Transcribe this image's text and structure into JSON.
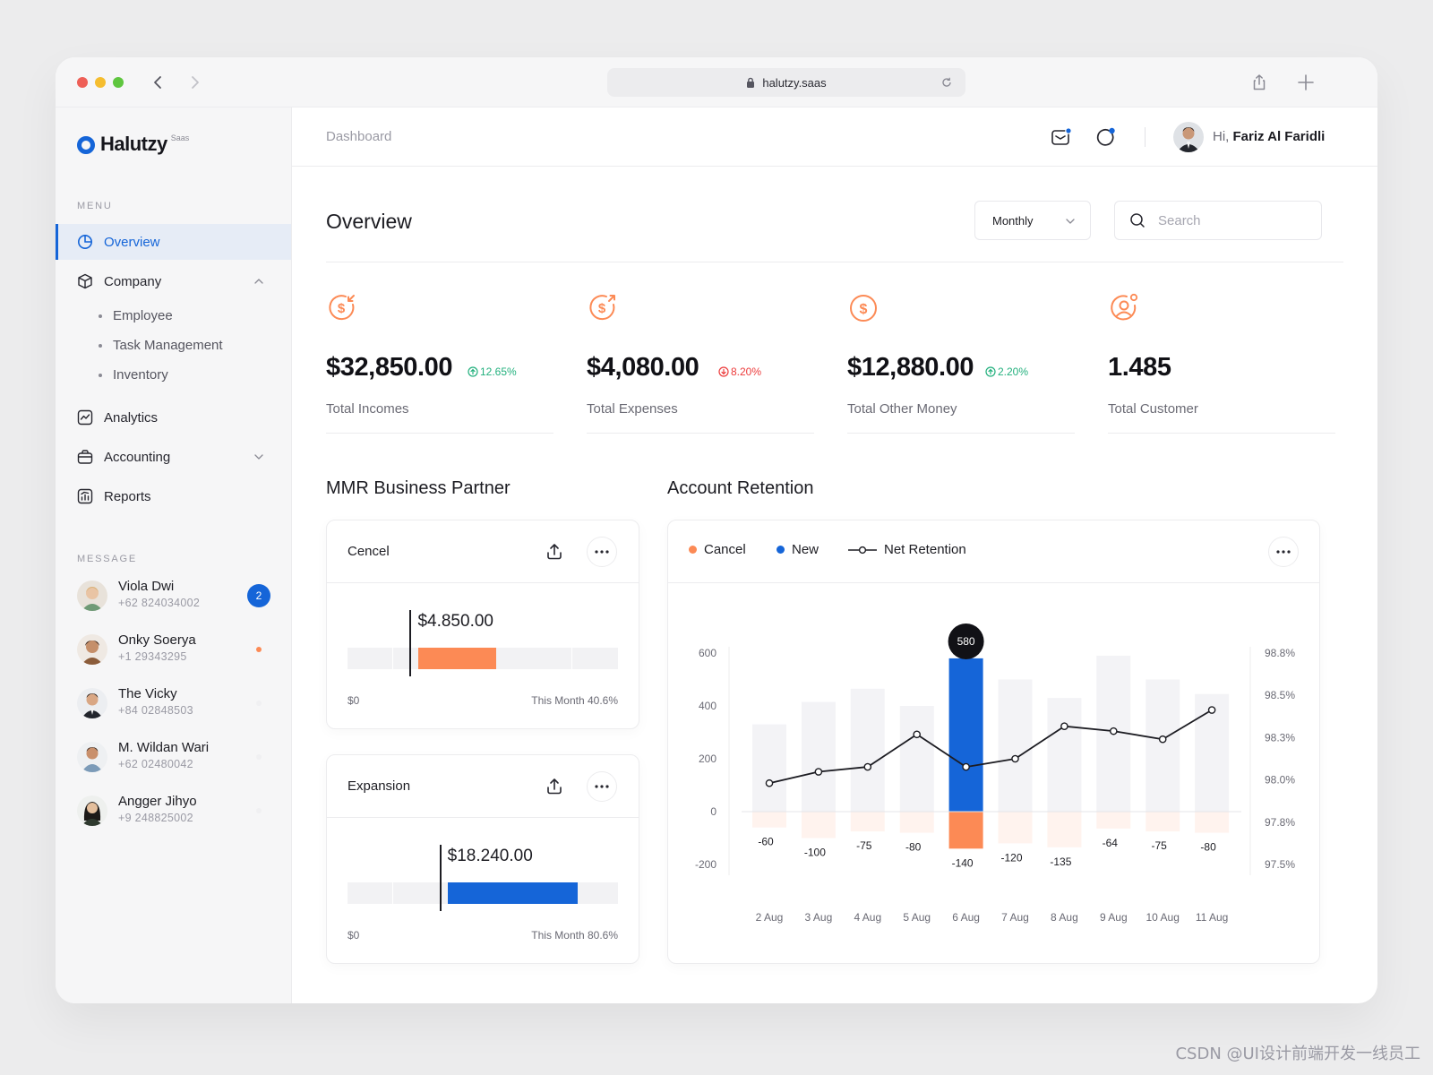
{
  "browser": {
    "url": "halutzy.saas"
  },
  "brand": {
    "name": "Halutzy",
    "tag": "Saas"
  },
  "sidebar": {
    "menu_label": "MENU",
    "message_label": "MESSAGE",
    "items": [
      {
        "label": "Overview",
        "icon": "pie-chart-icon",
        "active": true
      },
      {
        "label": "Company",
        "icon": "cube-icon",
        "expanded": true
      },
      {
        "label": "Analytics",
        "icon": "analytics-icon"
      },
      {
        "label": "Accounting",
        "icon": "briefcase-icon",
        "expanded": false
      },
      {
        "label": "Reports",
        "icon": "report-icon"
      }
    ],
    "company_sub": [
      "Employee",
      "Task Management",
      "Inventory"
    ],
    "messages": [
      {
        "name": "Viola Dwi",
        "phone": "+62 824034002",
        "badge": "2"
      },
      {
        "name": "Onky Soerya",
        "phone": "+1 29343295",
        "status": "unread"
      },
      {
        "name": "The Vicky",
        "phone": "+84 02848503",
        "status": "read"
      },
      {
        "name": "M. Wildan Wari",
        "phone": "+62 02480042",
        "status": "read"
      },
      {
        "name": "Angger Jihyo",
        "phone": "+9 248825002",
        "status": "read"
      }
    ]
  },
  "header": {
    "breadcrumb": "Dashboard",
    "greeting_prefix": "Hi,",
    "user_name": "Fariz Al Faridli"
  },
  "overview": {
    "title": "Overview",
    "period": "Monthly",
    "search_placeholder": "Search",
    "stats": [
      {
        "value": "$32,850.00",
        "change": "12.65%",
        "trend": "up",
        "label": "Total Incomes",
        "icon": "income-icon"
      },
      {
        "value": "$4,080.00",
        "change": "8.20%",
        "trend": "down",
        "label": "Total Expenses",
        "icon": "expense-icon"
      },
      {
        "value": "$12,880.00",
        "change": "2.20%",
        "trend": "up",
        "label": "Total Other Money",
        "icon": "dollar-icon"
      },
      {
        "value": "1.485",
        "change": "",
        "trend": "",
        "label": "Total Customer",
        "icon": "customer-icon"
      }
    ]
  },
  "mmr": {
    "title": "MMR Business Partner",
    "cards": [
      {
        "title": "Cencel",
        "value": "$4.850.00",
        "min_label": "$0",
        "max_label": "This Month 40.6%",
        "fill_start": 0.26,
        "fill_end": 0.55,
        "marker": 0.23,
        "color": "#fc8a55"
      },
      {
        "title": "Expansion",
        "value": "$18.240.00",
        "min_label": "$0",
        "max_label": "This Month 80.6%",
        "fill_start": 0.37,
        "fill_end": 0.85,
        "marker": 0.34,
        "color": "#1565d8"
      }
    ]
  },
  "retention": {
    "title": "Account Retention",
    "legend": {
      "cancel": "Cancel",
      "new": "New",
      "net": "Net Retention"
    },
    "colors": {
      "cancel": "#fc8a55",
      "new": "#1565d8",
      "net": "#1c1c22"
    },
    "tooltip": "580"
  },
  "chart_data": {
    "type": "bar",
    "categories": [
      "2 Aug",
      "3 Aug",
      "4 Aug",
      "5 Aug",
      "6 Aug",
      "7 Aug",
      "8 Aug",
      "9 Aug",
      "10 Aug",
      "11 Aug"
    ],
    "series": [
      {
        "name": "New",
        "values": [
          330,
          415,
          465,
          400,
          580,
          500,
          430,
          590,
          500,
          445
        ]
      },
      {
        "name": "Cancel",
        "values": [
          -60,
          -100,
          -75,
          -80,
          -140,
          -120,
          -135,
          -64,
          -75,
          -80
        ]
      },
      {
        "name": "Net Retention",
        "values": [
          98.0,
          98.07,
          98.1,
          98.3,
          98.1,
          98.15,
          98.35,
          98.32,
          98.27,
          98.45
        ]
      }
    ],
    "highlight_index": 4,
    "y_left": {
      "ticks": [
        "600",
        "400",
        "200",
        "0",
        "-200"
      ],
      "min": -200,
      "max": 600
    },
    "y_right": {
      "ticks": [
        "98.8%",
        "98.5%",
        "98.3%",
        "98.0%",
        "97.8%",
        "97.5%"
      ],
      "min": 97.5,
      "max": 98.8
    },
    "grid": false
  },
  "watermark": "CSDN @UI设计前端开发一线员工"
}
